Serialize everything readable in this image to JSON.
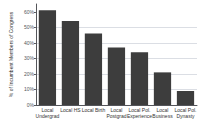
{
  "chart_data": {
    "type": "bar",
    "categories": [
      "Local\nUndergrad",
      "Local HS",
      "Local Birth",
      "Local\nPostgrad",
      "Local Pol.\nExperience",
      "Local\nBusiness",
      "Local Pol.\nDynasty"
    ],
    "values": [
      61,
      54,
      46,
      37,
      34,
      21,
      9
    ],
    "color": "#3d3d3d",
    "ylabel": "% of Incumbent Members of Congress",
    "ylim": [
      0,
      65
    ],
    "yticks": [
      {
        "value": 0,
        "label": "0%"
      },
      {
        "value": 10,
        "label": "10%"
      },
      {
        "value": 20,
        "label": "20%"
      },
      {
        "value": 30,
        "label": "30%"
      },
      {
        "value": 40,
        "label": "40%"
      },
      {
        "value": 50,
        "label": "50%"
      },
      {
        "value": 60,
        "label": "60%"
      }
    ],
    "grid": true
  }
}
